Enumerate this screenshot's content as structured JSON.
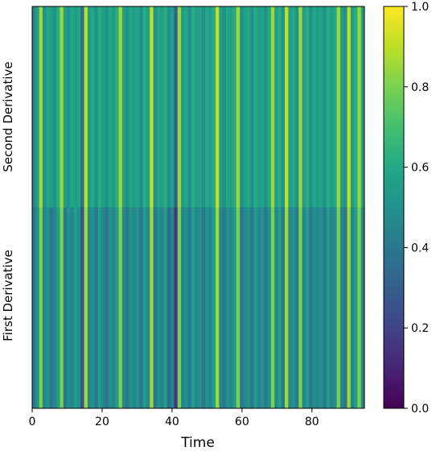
{
  "chart_data": {
    "type": "heatmap",
    "title": "",
    "xlabel": "Time",
    "ylabel": "",
    "x_range": [
      0,
      95
    ],
    "xticks": [
      0,
      20,
      40,
      60,
      80
    ],
    "rows": [
      "Second Derivative",
      "First Derivative"
    ],
    "colormap": "viridis",
    "colorbar": {
      "range": [
        0,
        1
      ],
      "ticks": [
        0.0,
        0.2,
        0.4,
        0.6,
        0.8,
        1.0
      ],
      "tick_labels": [
        "0.0",
        "0.2",
        "0.4",
        "0.6",
        "0.8",
        "1.0"
      ]
    },
    "grid": false,
    "second_derivative": [
      0.45,
      0.55,
      0.85,
      0.5,
      0.6,
      0.55,
      0.5,
      0.62,
      0.85,
      0.55,
      0.5,
      0.6,
      0.55,
      0.58,
      0.35,
      0.9,
      0.55,
      0.6,
      0.5,
      0.62,
      0.55,
      0.5,
      0.6,
      0.55,
      0.62,
      0.85,
      0.55,
      0.5,
      0.6,
      0.55,
      0.58,
      0.5,
      0.62,
      0.55,
      0.9,
      0.5,
      0.6,
      0.55,
      0.62,
      0.5,
      0.55,
      0.3,
      0.85,
      0.55,
      0.6,
      0.5,
      0.62,
      0.55,
      0.58,
      0.5,
      0.6,
      0.55,
      0.62,
      0.9,
      0.55,
      0.5,
      0.6,
      0.55,
      0.62,
      0.85,
      0.5,
      0.55,
      0.6,
      0.5,
      0.62,
      0.55,
      0.58,
      0.5,
      0.6,
      0.85,
      0.55,
      0.62,
      0.5,
      0.9,
      0.55,
      0.6,
      0.5,
      0.85,
      0.55,
      0.62,
      0.5,
      0.6,
      0.55,
      0.58,
      0.5,
      0.62,
      0.55,
      0.6,
      0.85,
      0.55,
      0.5,
      0.9,
      0.55,
      0.62,
      0.85,
      0.55
    ],
    "first_derivative": [
      0.4,
      0.5,
      0.8,
      0.45,
      0.5,
      0.4,
      0.45,
      0.55,
      0.8,
      0.4,
      0.5,
      0.45,
      0.55,
      0.5,
      0.25,
      0.85,
      0.45,
      0.5,
      0.4,
      0.55,
      0.45,
      0.4,
      0.5,
      0.45,
      0.55,
      0.8,
      0.45,
      0.4,
      0.5,
      0.45,
      0.5,
      0.4,
      0.55,
      0.45,
      0.85,
      0.4,
      0.5,
      0.45,
      0.55,
      0.35,
      0.45,
      0.15,
      0.8,
      0.45,
      0.5,
      0.4,
      0.55,
      0.45,
      0.5,
      0.4,
      0.5,
      0.45,
      0.55,
      0.85,
      0.45,
      0.4,
      0.5,
      0.45,
      0.55,
      0.8,
      0.4,
      0.45,
      0.5,
      0.4,
      0.55,
      0.45,
      0.5,
      0.4,
      0.5,
      0.8,
      0.45,
      0.55,
      0.4,
      0.85,
      0.45,
      0.5,
      0.4,
      0.8,
      0.45,
      0.55,
      0.4,
      0.5,
      0.45,
      0.5,
      0.4,
      0.55,
      0.45,
      0.5,
      0.8,
      0.45,
      0.4,
      0.85,
      0.45,
      0.55,
      0.8,
      0.45
    ]
  }
}
